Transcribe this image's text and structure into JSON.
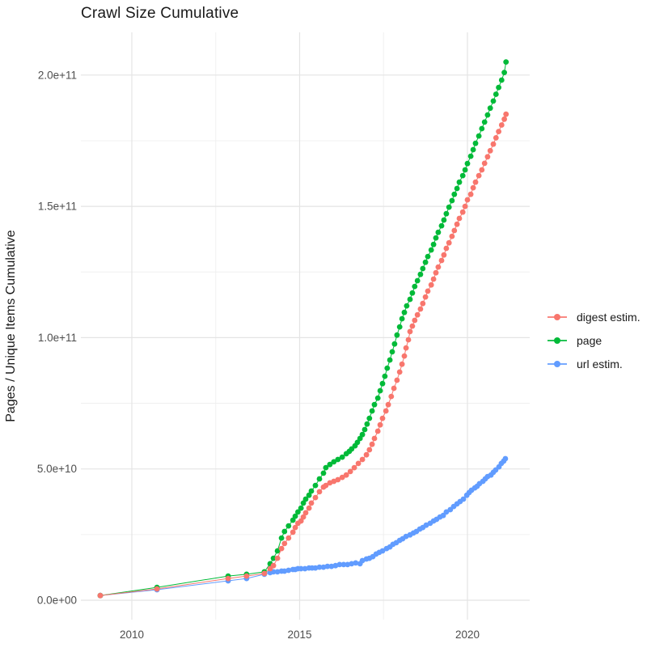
{
  "chart": {
    "title": "Crawl Size Cumulative",
    "y_axis_title": "Pages / Unique Items Cumulative",
    "background_color": "#FFFFFF",
    "major_gridline_color": "#E4E4E4",
    "minor_gridline_color": "#F0F0F0",
    "axis_tick_text_color": "#4D4D4D",
    "title_text_color": "#1A1A1A"
  },
  "legend": {
    "items": [
      {
        "label": "digest estim.",
        "color": "#F8766D"
      },
      {
        "label": "page",
        "color": "#00BA38"
      },
      {
        "label": "url estim.",
        "color": "#619CFF"
      }
    ]
  },
  "chart_data": {
    "type": "line",
    "title": "Crawl Size Cumulative",
    "xlabel": "",
    "ylabel": "Pages / Unique Items Cumulative",
    "x_unit": "year (decimal)",
    "y_unit": "pages / unique items, values stored in billions (1e9)",
    "grid": "on",
    "legend_position": "right-center",
    "xlim": [
      2008.45,
      2021.8
    ],
    "ylim_billions": [
      -8,
      216
    ],
    "x_ticks": [
      {
        "value": 2010,
        "label": "2010"
      },
      {
        "value": 2015,
        "label": "2015"
      },
      {
        "value": 2020,
        "label": "2020"
      }
    ],
    "y_ticks": [
      {
        "value_billions": 0,
        "label": "0.0e+00"
      },
      {
        "value_billions": 50,
        "label": "5.0e+10"
      },
      {
        "value_billions": 100,
        "label": "1.0e+11"
      },
      {
        "value_billions": 150,
        "label": "1.5e+11"
      },
      {
        "value_billions": 200,
        "label": "2.0e+11"
      }
    ],
    "x_minor_gridlines": [
      2012.5,
      2017.5
    ],
    "y_minor_gridlines_billions": [
      25,
      75,
      125,
      175
    ],
    "draw_order": [
      "url estim.",
      "page",
      "digest estim."
    ],
    "series": [
      {
        "name": "digest estim.",
        "color": "#F8766D",
        "points": [
          [
            2009.06,
            1.8
          ],
          [
            2010.75,
            4.3
          ],
          [
            2012.87,
            8.3
          ],
          [
            2013.42,
            9.2
          ],
          [
            2013.95,
            10.2
          ],
          [
            2014.12,
            12.0
          ],
          [
            2014.22,
            13.2
          ],
          [
            2014.34,
            16.0
          ],
          [
            2014.46,
            19.7
          ],
          [
            2014.55,
            21.6
          ],
          [
            2014.67,
            23.7
          ],
          [
            2014.8,
            25.9
          ],
          [
            2014.87,
            27.7
          ],
          [
            2014.95,
            29.3
          ],
          [
            2015.04,
            30.2
          ],
          [
            2015.11,
            31.7
          ],
          [
            2015.18,
            33.3
          ],
          [
            2015.28,
            35.1
          ],
          [
            2015.35,
            37.0
          ],
          [
            2015.47,
            39.1
          ],
          [
            2015.59,
            41.3
          ],
          [
            2015.71,
            43.1
          ],
          [
            2015.78,
            43.7
          ],
          [
            2015.9,
            44.7
          ],
          [
            2016.02,
            45.3
          ],
          [
            2016.14,
            45.9
          ],
          [
            2016.27,
            46.8
          ],
          [
            2016.39,
            47.7
          ],
          [
            2016.51,
            49.0
          ],
          [
            2016.63,
            50.5
          ],
          [
            2016.75,
            52.1
          ],
          [
            2016.87,
            53.6
          ],
          [
            2016.99,
            55.4
          ],
          [
            2017.08,
            57.3
          ],
          [
            2017.16,
            59.4
          ],
          [
            2017.23,
            61.6
          ],
          [
            2017.33,
            64.4
          ],
          [
            2017.4,
            66.8
          ],
          [
            2017.47,
            69.3
          ],
          [
            2017.57,
            72.1
          ],
          [
            2017.64,
            74.5
          ],
          [
            2017.73,
            77.6
          ],
          [
            2017.81,
            80.7
          ],
          [
            2017.9,
            83.8
          ],
          [
            2017.98,
            86.9
          ],
          [
            2018.05,
            89.9
          ],
          [
            2018.12,
            93.0
          ],
          [
            2018.17,
            96.1
          ],
          [
            2018.24,
            99.2
          ],
          [
            2018.29,
            102.3
          ],
          [
            2018.36,
            104.4
          ],
          [
            2018.43,
            106.6
          ],
          [
            2018.51,
            108.7
          ],
          [
            2018.6,
            110.9
          ],
          [
            2018.67,
            113.0
          ],
          [
            2018.75,
            115.5
          ],
          [
            2018.82,
            117.7
          ],
          [
            2018.92,
            120.1
          ],
          [
            2018.99,
            122.3
          ],
          [
            2019.06,
            124.7
          ],
          [
            2019.13,
            126.9
          ],
          [
            2019.23,
            129.4
          ],
          [
            2019.3,
            131.5
          ],
          [
            2019.37,
            134.0
          ],
          [
            2019.45,
            136.1
          ],
          [
            2019.54,
            138.6
          ],
          [
            2019.61,
            140.8
          ],
          [
            2019.69,
            143.2
          ],
          [
            2019.76,
            145.4
          ],
          [
            2019.86,
            147.8
          ],
          [
            2019.93,
            150.0
          ],
          [
            2020.0,
            152.5
          ],
          [
            2020.1,
            154.6
          ],
          [
            2020.17,
            157.1
          ],
          [
            2020.24,
            159.2
          ],
          [
            2020.34,
            161.7
          ],
          [
            2020.43,
            163.9
          ],
          [
            2020.51,
            166.4
          ],
          [
            2020.6,
            168.9
          ],
          [
            2020.68,
            171.2
          ],
          [
            2020.77,
            173.7
          ],
          [
            2020.85,
            176.1
          ],
          [
            2020.93,
            178.5
          ],
          [
            2021.02,
            181.0
          ],
          [
            2021.1,
            183.2
          ],
          [
            2021.15,
            185.1
          ]
        ]
      },
      {
        "name": "page",
        "color": "#00BA38",
        "points": [
          [
            2009.06,
            1.8
          ],
          [
            2010.75,
            4.9
          ],
          [
            2012.87,
            9.2
          ],
          [
            2013.42,
            9.9
          ],
          [
            2013.95,
            10.8
          ],
          [
            2014.12,
            13.9
          ],
          [
            2014.22,
            16.0
          ],
          [
            2014.34,
            18.8
          ],
          [
            2014.46,
            23.7
          ],
          [
            2014.55,
            26.2
          ],
          [
            2014.67,
            28.3
          ],
          [
            2014.8,
            30.5
          ],
          [
            2014.87,
            32.0
          ],
          [
            2014.95,
            33.6
          ],
          [
            2015.04,
            35.1
          ],
          [
            2015.11,
            37.0
          ],
          [
            2015.18,
            38.5
          ],
          [
            2015.28,
            40.0
          ],
          [
            2015.35,
            41.6
          ],
          [
            2015.47,
            43.7
          ],
          [
            2015.59,
            46.2
          ],
          [
            2015.71,
            48.4
          ],
          [
            2015.78,
            50.5
          ],
          [
            2015.9,
            51.7
          ],
          [
            2016.02,
            52.7
          ],
          [
            2016.14,
            53.6
          ],
          [
            2016.27,
            54.5
          ],
          [
            2016.39,
            55.8
          ],
          [
            2016.48,
            56.7
          ],
          [
            2016.55,
            57.6
          ],
          [
            2016.65,
            58.8
          ],
          [
            2016.72,
            60.1
          ],
          [
            2016.8,
            61.6
          ],
          [
            2016.87,
            63.1
          ],
          [
            2016.94,
            65.0
          ],
          [
            2017.01,
            67.1
          ],
          [
            2017.08,
            69.3
          ],
          [
            2017.16,
            72.1
          ],
          [
            2017.23,
            74.5
          ],
          [
            2017.33,
            77.0
          ],
          [
            2017.4,
            79.8
          ],
          [
            2017.47,
            82.5
          ],
          [
            2017.54,
            85.3
          ],
          [
            2017.61,
            88.4
          ],
          [
            2017.69,
            91.5
          ],
          [
            2017.76,
            94.6
          ],
          [
            2017.83,
            97.6
          ],
          [
            2017.9,
            101.0
          ],
          [
            2017.98,
            104.1
          ],
          [
            2018.05,
            107.2
          ],
          [
            2018.12,
            109.6
          ],
          [
            2018.19,
            112.1
          ],
          [
            2018.29,
            114.6
          ],
          [
            2018.36,
            117.0
          ],
          [
            2018.43,
            119.5
          ],
          [
            2018.51,
            121.7
          ],
          [
            2018.6,
            124.1
          ],
          [
            2018.67,
            126.3
          ],
          [
            2018.75,
            128.7
          ],
          [
            2018.82,
            130.9
          ],
          [
            2018.92,
            133.4
          ],
          [
            2018.99,
            135.5
          ],
          [
            2019.06,
            138.0
          ],
          [
            2019.13,
            140.1
          ],
          [
            2019.23,
            142.6
          ],
          [
            2019.3,
            144.8
          ],
          [
            2019.37,
            147.2
          ],
          [
            2019.45,
            149.7
          ],
          [
            2019.54,
            152.2
          ],
          [
            2019.61,
            154.6
          ],
          [
            2019.69,
            156.8
          ],
          [
            2019.76,
            159.2
          ],
          [
            2019.86,
            161.7
          ],
          [
            2019.93,
            163.9
          ],
          [
            2020.0,
            166.3
          ],
          [
            2020.1,
            169.1
          ],
          [
            2020.17,
            171.6
          ],
          [
            2020.24,
            174.0
          ],
          [
            2020.34,
            176.8
          ],
          [
            2020.43,
            179.6
          ],
          [
            2020.51,
            182.1
          ],
          [
            2020.6,
            184.8
          ],
          [
            2020.68,
            187.4
          ],
          [
            2020.77,
            190.1
          ],
          [
            2020.85,
            192.7
          ],
          [
            2020.93,
            195.3
          ],
          [
            2021.02,
            198.1
          ],
          [
            2021.1,
            201.0
          ],
          [
            2021.15,
            205.0
          ]
        ]
      },
      {
        "name": "url estim.",
        "color": "#619CFF",
        "points": [
          [
            2009.06,
            1.8
          ],
          [
            2010.75,
            4.0
          ],
          [
            2012.87,
            7.4
          ],
          [
            2013.42,
            8.3
          ],
          [
            2013.95,
            9.9
          ],
          [
            2014.12,
            10.5
          ],
          [
            2014.22,
            10.8
          ],
          [
            2014.34,
            10.8
          ],
          [
            2014.46,
            11.1
          ],
          [
            2014.55,
            11.1
          ],
          [
            2014.67,
            11.4
          ],
          [
            2014.8,
            11.7
          ],
          [
            2014.87,
            11.7
          ],
          [
            2014.95,
            12.0
          ],
          [
            2015.04,
            12.0
          ],
          [
            2015.16,
            12.0
          ],
          [
            2015.28,
            12.3
          ],
          [
            2015.37,
            12.3
          ],
          [
            2015.47,
            12.3
          ],
          [
            2015.59,
            12.6
          ],
          [
            2015.71,
            12.6
          ],
          [
            2015.83,
            12.9
          ],
          [
            2015.95,
            12.9
          ],
          [
            2016.07,
            13.2
          ],
          [
            2016.19,
            13.6
          ],
          [
            2016.31,
            13.6
          ],
          [
            2016.43,
            13.6
          ],
          [
            2016.55,
            13.9
          ],
          [
            2016.67,
            14.2
          ],
          [
            2016.8,
            13.9
          ],
          [
            2016.87,
            15.1
          ],
          [
            2016.99,
            15.7
          ],
          [
            2017.08,
            16.0
          ],
          [
            2017.18,
            16.6
          ],
          [
            2017.28,
            17.6
          ],
          [
            2017.37,
            18.2
          ],
          [
            2017.47,
            18.8
          ],
          [
            2017.59,
            19.7
          ],
          [
            2017.69,
            20.3
          ],
          [
            2017.78,
            21.3
          ],
          [
            2017.88,
            21.9
          ],
          [
            2017.98,
            22.8
          ],
          [
            2018.07,
            23.4
          ],
          [
            2018.17,
            24.3
          ],
          [
            2018.29,
            24.9
          ],
          [
            2018.39,
            25.6
          ],
          [
            2018.48,
            26.2
          ],
          [
            2018.58,
            27.1
          ],
          [
            2018.67,
            27.7
          ],
          [
            2018.77,
            28.6
          ],
          [
            2018.89,
            29.3
          ],
          [
            2018.99,
            30.2
          ],
          [
            2019.08,
            30.8
          ],
          [
            2019.18,
            31.7
          ],
          [
            2019.28,
            32.3
          ],
          [
            2019.37,
            33.6
          ],
          [
            2019.49,
            34.5
          ],
          [
            2019.59,
            35.7
          ],
          [
            2019.69,
            36.7
          ],
          [
            2019.78,
            37.6
          ],
          [
            2019.88,
            38.5
          ],
          [
            2019.98,
            40.0
          ],
          [
            2020.05,
            41.0
          ],
          [
            2020.12,
            41.9
          ],
          [
            2020.22,
            42.8
          ],
          [
            2020.29,
            43.4
          ],
          [
            2020.36,
            44.4
          ],
          [
            2020.46,
            45.3
          ],
          [
            2020.53,
            46.2
          ],
          [
            2020.6,
            47.1
          ],
          [
            2020.7,
            47.7
          ],
          [
            2020.77,
            48.7
          ],
          [
            2020.84,
            49.6
          ],
          [
            2020.94,
            50.8
          ],
          [
            2021.01,
            52.1
          ],
          [
            2021.08,
            53.0
          ],
          [
            2021.13,
            53.9
          ]
        ]
      }
    ]
  }
}
